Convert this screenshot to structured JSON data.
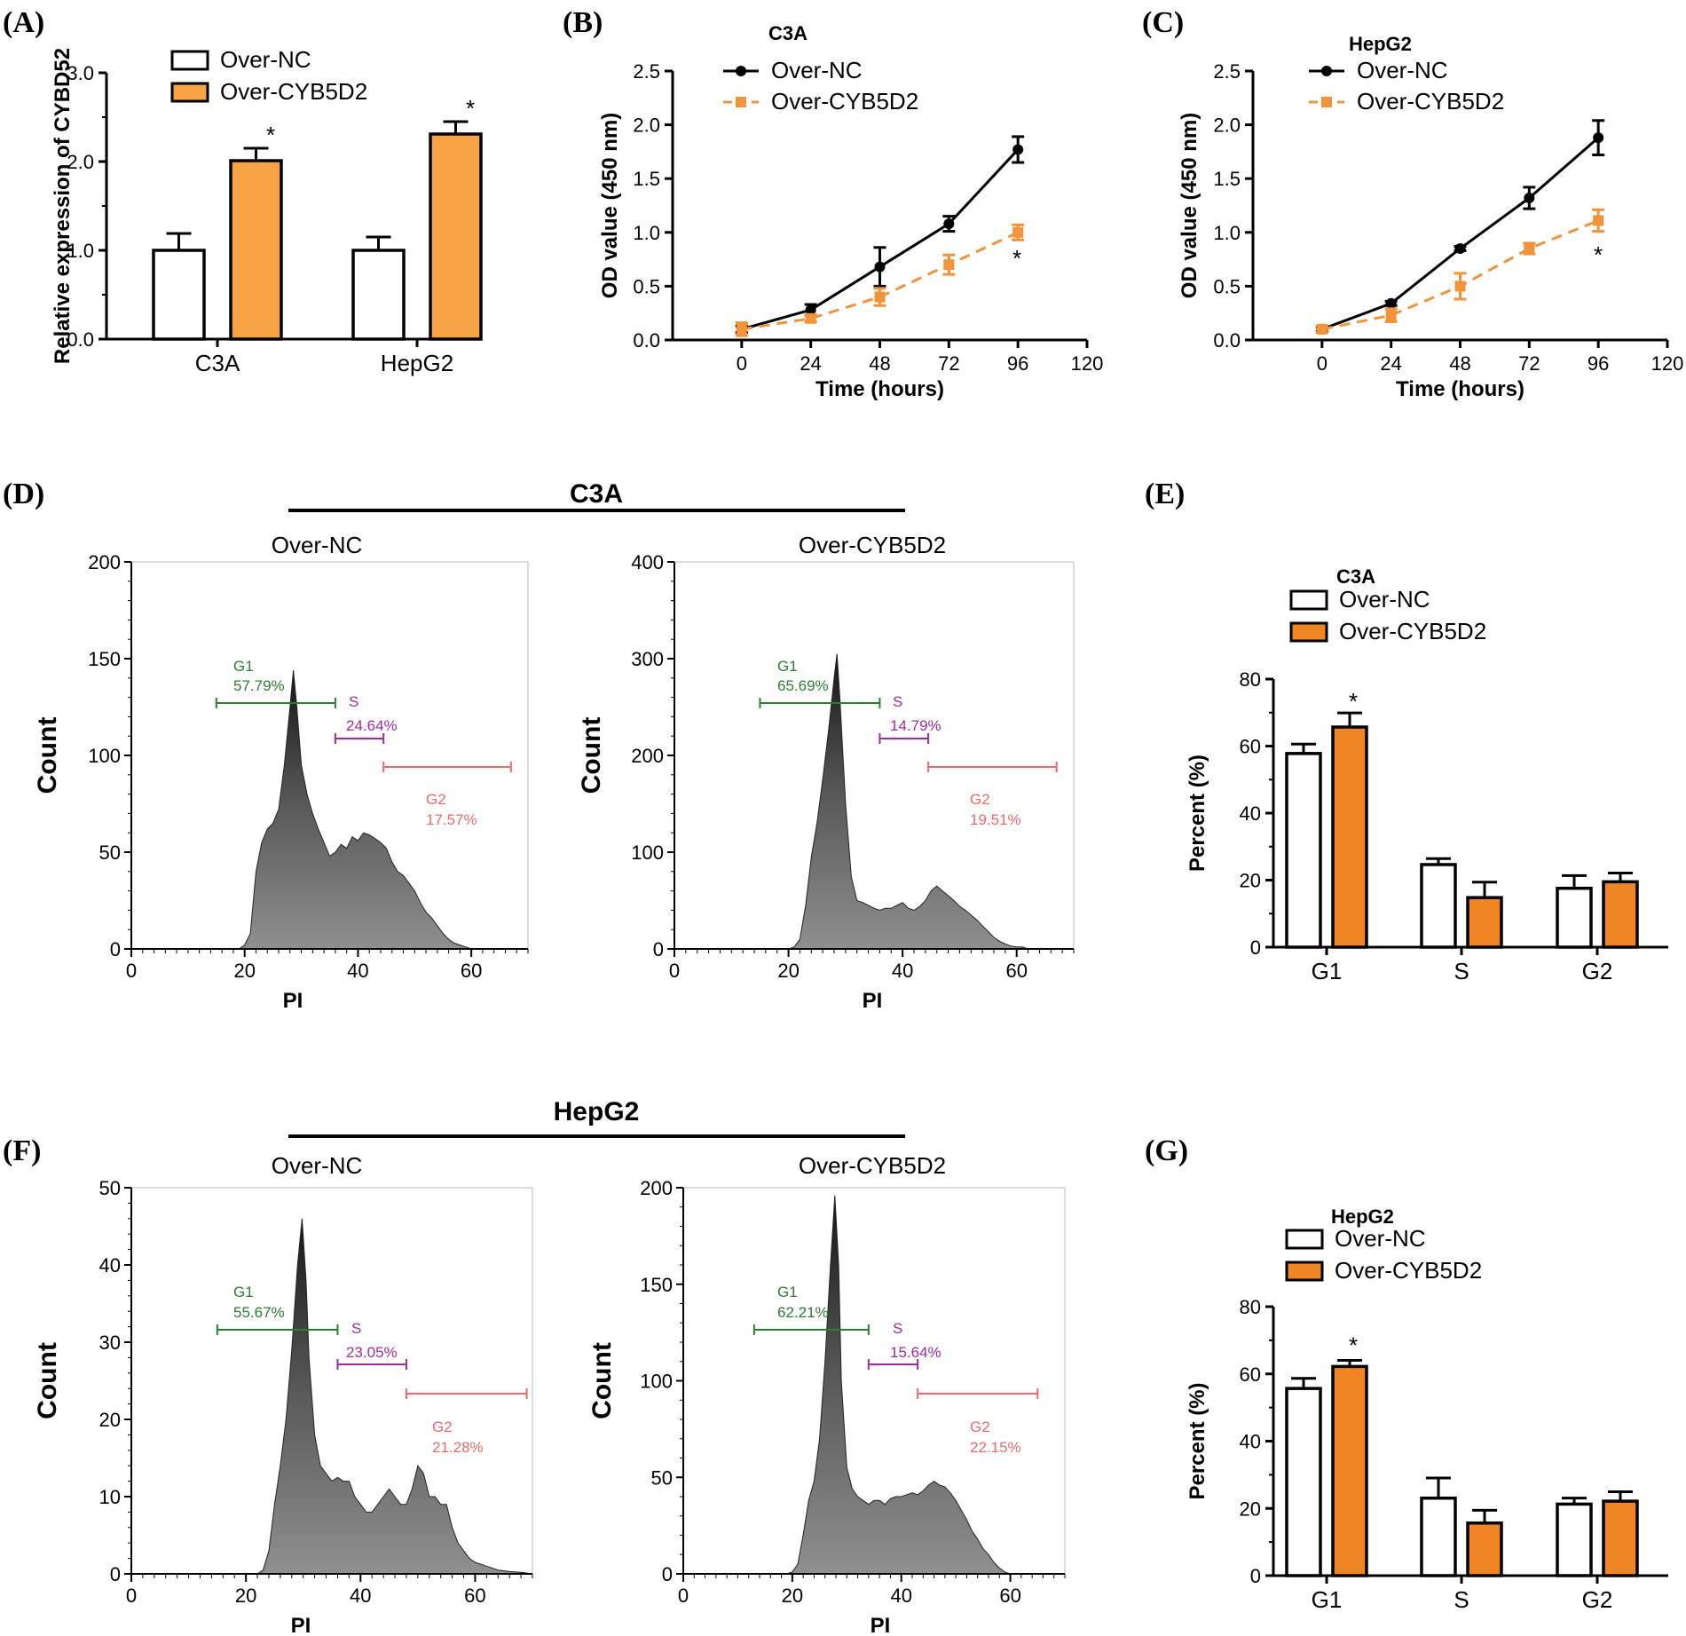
{
  "colors": {
    "orange": "#F7A243",
    "orange_dark": "#F08524",
    "orange_line": "#F39339",
    "gate_g1": "#2E7D32",
    "gate_s": "#A22AA0",
    "gate_g2": "#F06A6A"
  },
  "panels": {
    "A": "(A)",
    "B": "(B)",
    "C": "(C)",
    "D": "(D)",
    "E": "(E)",
    "F": "(F)",
    "G": "(G)"
  },
  "chart_data": [
    {
      "id": "A",
      "type": "bar",
      "title": "",
      "ylabel": "Relative expression of CYBD52",
      "ylim": [
        0,
        3.0
      ],
      "yticks": [
        "0.0",
        "1.0",
        "2.0",
        "3.0"
      ],
      "categories": [
        "C3A",
        "HepG2"
      ],
      "series": [
        {
          "name": "Over-NC",
          "values": [
            1.0,
            1.0
          ],
          "errors": [
            0.19,
            0.15
          ]
        },
        {
          "name": "Over-CYB5D2",
          "values": [
            2.01,
            2.31
          ],
          "errors": [
            0.14,
            0.14
          ]
        }
      ],
      "annotations": [
        "*",
        "*"
      ]
    },
    {
      "id": "B",
      "type": "line",
      "title": "C3A",
      "xlabel": "Time (hours)",
      "ylabel": "OD value (450 nm)",
      "xlim": [
        -24,
        120
      ],
      "ylim": [
        0,
        2.5
      ],
      "xticks": [
        "0",
        "24",
        "48",
        "72",
        "96",
        "120"
      ],
      "yticks": [
        "0.0",
        "0.5",
        "1.0",
        "1.5",
        "2.0",
        "2.5"
      ],
      "x": [
        0,
        24,
        48,
        72,
        96
      ],
      "series": [
        {
          "name": "Over-NC",
          "values": [
            0.1,
            0.28,
            0.68,
            1.08,
            1.77
          ],
          "errors": [
            0.03,
            0.05,
            0.18,
            0.07,
            0.12
          ]
        },
        {
          "name": "Over-CYB5D2",
          "values": [
            0.1,
            0.2,
            0.4,
            0.7,
            1.0
          ],
          "errors": [
            0.06,
            0.03,
            0.08,
            0.09,
            0.07
          ]
        }
      ],
      "annotation": "*"
    },
    {
      "id": "C",
      "type": "line",
      "title": "HepG2",
      "xlabel": "Time (hours)",
      "ylabel": "OD value (450 nm)",
      "xlim": [
        -24,
        120
      ],
      "ylim": [
        0,
        2.5
      ],
      "xticks": [
        "0",
        "24",
        "48",
        "72",
        "96",
        "120"
      ],
      "yticks": [
        "0.0",
        "0.5",
        "1.0",
        "1.5",
        "2.0",
        "2.5"
      ],
      "x": [
        0,
        24,
        48,
        72,
        96
      ],
      "series": [
        {
          "name": "Over-NC",
          "values": [
            0.1,
            0.34,
            0.85,
            1.32,
            1.88
          ],
          "errors": [
            0.02,
            0.02,
            0.02,
            0.1,
            0.16
          ]
        },
        {
          "name": "Over-CYB5D2",
          "values": [
            0.1,
            0.23,
            0.5,
            0.85,
            1.11
          ],
          "errors": [
            0.03,
            0.06,
            0.12,
            0.05,
            0.1
          ]
        }
      ],
      "annotation": "*"
    },
    {
      "id": "D1",
      "type": "area",
      "group": "C3A",
      "title": "Over-NC",
      "xlabel": "PI",
      "ylabel": "Count",
      "xlim": [
        0,
        70
      ],
      "ylim": [
        0,
        200
      ],
      "xticks": [
        "0",
        "20",
        "40",
        "60"
      ],
      "yticks": [
        "0",
        "50",
        "100",
        "150",
        "200"
      ],
      "x": [
        0,
        18,
        19,
        20,
        21,
        22,
        23,
        24,
        25,
        26,
        27,
        28,
        28.6,
        29.2,
        30,
        31,
        32,
        33,
        34,
        35,
        36,
        37,
        38,
        39,
        40,
        41,
        42,
        43,
        44,
        45,
        46,
        47,
        48,
        49,
        50,
        51,
        52,
        53,
        54,
        55,
        56,
        57,
        58,
        59,
        60,
        61,
        62,
        70
      ],
      "values": [
        0,
        0,
        0,
        2,
        8,
        40,
        55,
        62,
        65,
        72,
        95,
        125,
        144,
        125,
        95,
        80,
        70,
        62,
        55,
        48,
        50,
        54,
        52,
        58,
        56,
        60,
        59,
        57,
        55,
        52,
        45,
        40,
        38,
        34,
        30,
        24,
        19,
        16,
        12,
        8,
        5,
        3,
        2,
        1,
        0,
        0,
        0,
        0
      ],
      "gates": [
        {
          "name": "G1",
          "pct": "57.79%"
        },
        {
          "name": "S",
          "pct": "24.64%"
        },
        {
          "name": "G2",
          "pct": "17.57%"
        }
      ]
    },
    {
      "id": "D2",
      "type": "area",
      "group": "C3A",
      "title": "Over-CYB5D2",
      "xlabel": "PI",
      "ylabel": "Count",
      "xlim": [
        0,
        70
      ],
      "ylim": [
        0,
        400
      ],
      "xticks": [
        "0",
        "20",
        "40",
        "60"
      ],
      "yticks": [
        "0",
        "100",
        "200",
        "300",
        "400"
      ],
      "x": [
        0,
        20,
        21,
        22,
        23,
        24,
        25,
        26,
        27,
        28,
        28.5,
        29,
        30,
        31,
        32,
        33,
        34,
        35,
        36,
        37,
        38,
        39,
        40,
        41,
        42,
        43,
        44,
        45,
        46,
        47,
        48,
        49,
        50,
        51,
        52,
        53,
        54,
        55,
        56,
        57,
        58,
        59,
        60,
        61,
        62,
        70
      ],
      "values": [
        0,
        0,
        2,
        10,
        45,
        95,
        130,
        175,
        225,
        280,
        305,
        260,
        150,
        75,
        50,
        48,
        45,
        42,
        40,
        42,
        42,
        45,
        48,
        42,
        40,
        44,
        50,
        60,
        65,
        60,
        55,
        50,
        44,
        40,
        35,
        30,
        24,
        18,
        12,
        8,
        5,
        3,
        2,
        2,
        0,
        0
      ],
      "gates": [
        {
          "name": "G1",
          "pct": "65.69%"
        },
        {
          "name": "S",
          "pct": "14.79%"
        },
        {
          "name": "G2",
          "pct": "19.51%"
        }
      ]
    },
    {
      "id": "E",
      "type": "bar",
      "title": "C3A",
      "ylabel": "Percent (%)",
      "ylim": [
        0,
        80
      ],
      "yticks": [
        "0",
        "20",
        "40",
        "60",
        "80"
      ],
      "categories": [
        "G1",
        "S",
        "G2"
      ],
      "series": [
        {
          "name": "Over-NC",
          "values": [
            57.79,
            24.64,
            17.57
          ],
          "errors": [
            2.8,
            1.8,
            3.8
          ]
        },
        {
          "name": "Over-CYB5D2",
          "values": [
            65.69,
            14.79,
            19.51
          ],
          "errors": [
            4.2,
            4.6,
            2.6
          ]
        }
      ],
      "annotation": "*"
    },
    {
      "id": "F1",
      "type": "area",
      "group": "HepG2",
      "title": "Over-NC",
      "xlabel": "PI",
      "ylabel": "Count",
      "xlim": [
        0,
        70
      ],
      "ylim": [
        0,
        50
      ],
      "xticks": [
        "0",
        "20",
        "40",
        "60"
      ],
      "yticks": [
        "0",
        "10",
        "20",
        "30",
        "40",
        "50"
      ],
      "x": [
        0,
        22,
        23,
        24,
        25,
        26,
        27,
        28,
        29,
        29.8,
        30.5,
        31,
        32,
        33,
        34,
        35,
        36,
        37,
        38,
        39,
        40,
        41,
        42,
        43,
        44,
        45,
        46,
        47,
        48,
        49,
        50,
        51,
        52,
        53,
        54,
        55,
        56,
        57,
        58,
        59,
        60,
        62,
        64,
        66,
        68,
        70
      ],
      "values": [
        0,
        0,
        0.5,
        3,
        9,
        14,
        20,
        29,
        40,
        46,
        38,
        28,
        18,
        14,
        13,
        12,
        12.5,
        12,
        12,
        10,
        9,
        8,
        8,
        9,
        10,
        11,
        10,
        9,
        9,
        11,
        14,
        13,
        10,
        10,
        9,
        9,
        6,
        4,
        3,
        2,
        1.5,
        1,
        0.5,
        0.3,
        0.2,
        0
      ],
      "gates": [
        {
          "name": "G1",
          "pct": "55.67%"
        },
        {
          "name": "S",
          "pct": "23.05%"
        },
        {
          "name": "G2",
          "pct": "21.28%"
        }
      ]
    },
    {
      "id": "F2",
      "type": "area",
      "group": "HepG2",
      "title": "Over-CYB5D2",
      "xlabel": "PI",
      "ylabel": "Count",
      "xlim": [
        0,
        70
      ],
      "ylim": [
        0,
        200
      ],
      "xticks": [
        "0",
        "20",
        "40",
        "60"
      ],
      "yticks": [
        "0",
        "50",
        "100",
        "150",
        "200"
      ],
      "x": [
        0,
        19,
        20,
        21,
        22,
        23,
        24,
        25,
        26,
        27,
        27.8,
        28.5,
        29,
        30,
        31,
        32,
        33,
        34,
        35,
        36,
        37,
        38,
        39,
        40,
        41,
        42,
        43,
        44,
        45,
        46,
        47,
        48,
        49,
        50,
        51,
        52,
        53,
        54,
        55,
        56,
        57,
        58,
        59,
        60,
        70
      ],
      "values": [
        0,
        0,
        1,
        5,
        20,
        38,
        48,
        70,
        110,
        160,
        196,
        160,
        100,
        55,
        44,
        40,
        38,
        36,
        38,
        38,
        36,
        39,
        40,
        40,
        41,
        42,
        41,
        43,
        46,
        48,
        46,
        45,
        42,
        38,
        33,
        28,
        22,
        18,
        13,
        10,
        6,
        3,
        1,
        0,
        0
      ],
      "gates": [
        {
          "name": "G1",
          "pct": "62.21%"
        },
        {
          "name": "S",
          "pct": "15.64%"
        },
        {
          "name": "G2",
          "pct": "22.15%"
        }
      ]
    },
    {
      "id": "G",
      "type": "bar",
      "title": "HepG2",
      "ylabel": "Percent (%)",
      "ylim": [
        0,
        80
      ],
      "yticks": [
        "0",
        "20",
        "40",
        "60",
        "80"
      ],
      "categories": [
        "G1",
        "S",
        "G2"
      ],
      "series": [
        {
          "name": "Over-NC",
          "values": [
            55.67,
            23.05,
            21.28
          ],
          "errors": [
            3.0,
            6.0,
            1.8
          ]
        },
        {
          "name": "Over-CYB5D2",
          "values": [
            62.21,
            15.64,
            22.15
          ],
          "errors": [
            1.8,
            3.8,
            2.8
          ]
        }
      ],
      "annotation": "*"
    }
  ]
}
